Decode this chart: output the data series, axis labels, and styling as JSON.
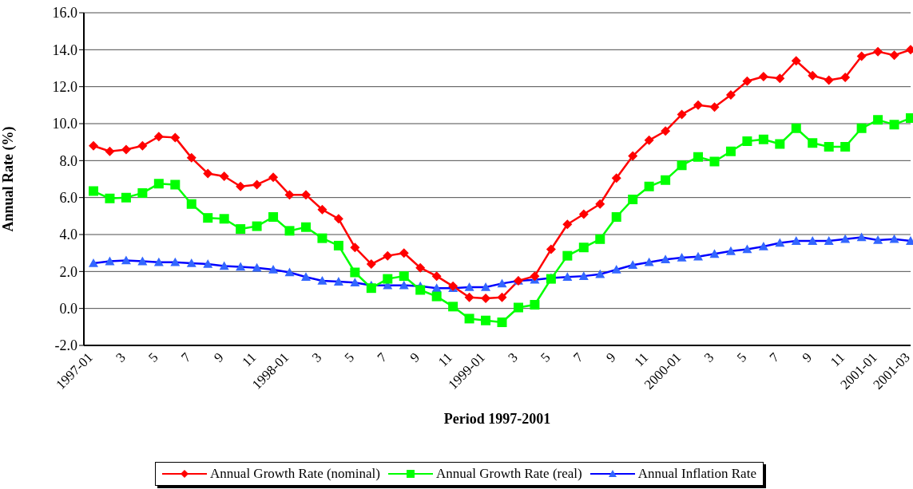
{
  "chart_data": {
    "type": "line",
    "xlabel": "Period 1997-2001",
    "ylabel": "Annual Rate (%)",
    "categories": [
      "1997-01",
      null,
      "3",
      null,
      "5",
      null,
      "7",
      null,
      "9",
      null,
      "11",
      null,
      "1998-01",
      null,
      "3",
      null,
      "5",
      null,
      "7",
      null,
      "9",
      null,
      "11",
      null,
      "1999-01",
      null,
      "3",
      null,
      "5",
      null,
      "7",
      null,
      "9",
      null,
      "11",
      null,
      "2000-01",
      null,
      "3",
      null,
      "5",
      null,
      "7",
      null,
      "9",
      null,
      "11",
      null,
      "2001-01",
      null,
      "2001-03"
    ],
    "series": [
      {
        "name": "Annual Growth Rate (nominal)",
        "color": "#ff0000",
        "marker": "diamond",
        "values": [
          8.8,
          8.5,
          8.6,
          8.8,
          9.3,
          9.25,
          8.15,
          7.3,
          7.15,
          6.6,
          6.7,
          7.1,
          6.15,
          6.15,
          5.35,
          4.85,
          3.3,
          2.4,
          2.85,
          3.0,
          2.2,
          1.75,
          1.2,
          0.6,
          0.55,
          0.6,
          1.5,
          1.75,
          3.2,
          4.55,
          5.1,
          5.65,
          7.05,
          8.25,
          9.1,
          9.6,
          10.5,
          11.0,
          10.9,
          11.55,
          12.3,
          12.55,
          12.45,
          13.4,
          12.6,
          12.35,
          12.5,
          13.65,
          13.9,
          13.7,
          14.0
        ]
      },
      {
        "name": "Annual Growth Rate (real)",
        "color": "#00ff00",
        "marker": "square",
        "values": [
          6.35,
          5.95,
          6.0,
          6.25,
          6.75,
          6.7,
          5.65,
          4.9,
          4.85,
          4.3,
          4.45,
          4.95,
          4.2,
          4.4,
          3.8,
          3.4,
          1.95,
          1.1,
          1.6,
          1.75,
          1.0,
          0.65,
          0.1,
          -0.55,
          -0.65,
          -0.75,
          0.05,
          0.2,
          1.6,
          2.85,
          3.3,
          3.75,
          4.95,
          5.9,
          6.6,
          6.95,
          7.75,
          8.2,
          7.95,
          8.5,
          9.05,
          9.15,
          8.9,
          9.75,
          8.95,
          8.75,
          8.75,
          9.75,
          10.2,
          9.95,
          10.3
        ]
      },
      {
        "name": "Annual Inflation Rate",
        "color": "#0000ff",
        "marker": "triangle",
        "values": [
          2.45,
          2.55,
          2.6,
          2.55,
          2.5,
          2.5,
          2.45,
          2.4,
          2.3,
          2.25,
          2.2,
          2.1,
          1.95,
          1.7,
          1.5,
          1.45,
          1.4,
          1.25,
          1.25,
          1.25,
          1.2,
          1.1,
          1.1,
          1.15,
          1.15,
          1.35,
          1.5,
          1.55,
          1.65,
          1.7,
          1.75,
          1.85,
          2.1,
          2.35,
          2.5,
          2.65,
          2.75,
          2.8,
          2.95,
          3.1,
          3.2,
          3.35,
          3.55,
          3.65,
          3.65,
          3.65,
          3.75,
          3.85,
          3.7,
          3.75,
          3.65
        ]
      }
    ],
    "ylim": [
      -2,
      16
    ],
    "yticks": [
      {
        "value": -2,
        "label": "-2.0"
      },
      {
        "value": 0,
        "label": "0.0"
      },
      {
        "value": 2,
        "label": "2.0"
      },
      {
        "value": 4,
        "label": "4.0"
      },
      {
        "value": 6,
        "label": "6.0"
      },
      {
        "value": 8,
        "label": "8.0"
      },
      {
        "value": 10,
        "label": "10.0"
      },
      {
        "value": 12,
        "label": "12.0"
      },
      {
        "value": 14,
        "label": "14.0"
      },
      {
        "value": 16,
        "label": "16.0"
      }
    ],
    "grid": "y",
    "legend": "bottom",
    "line_style": "solid"
  }
}
